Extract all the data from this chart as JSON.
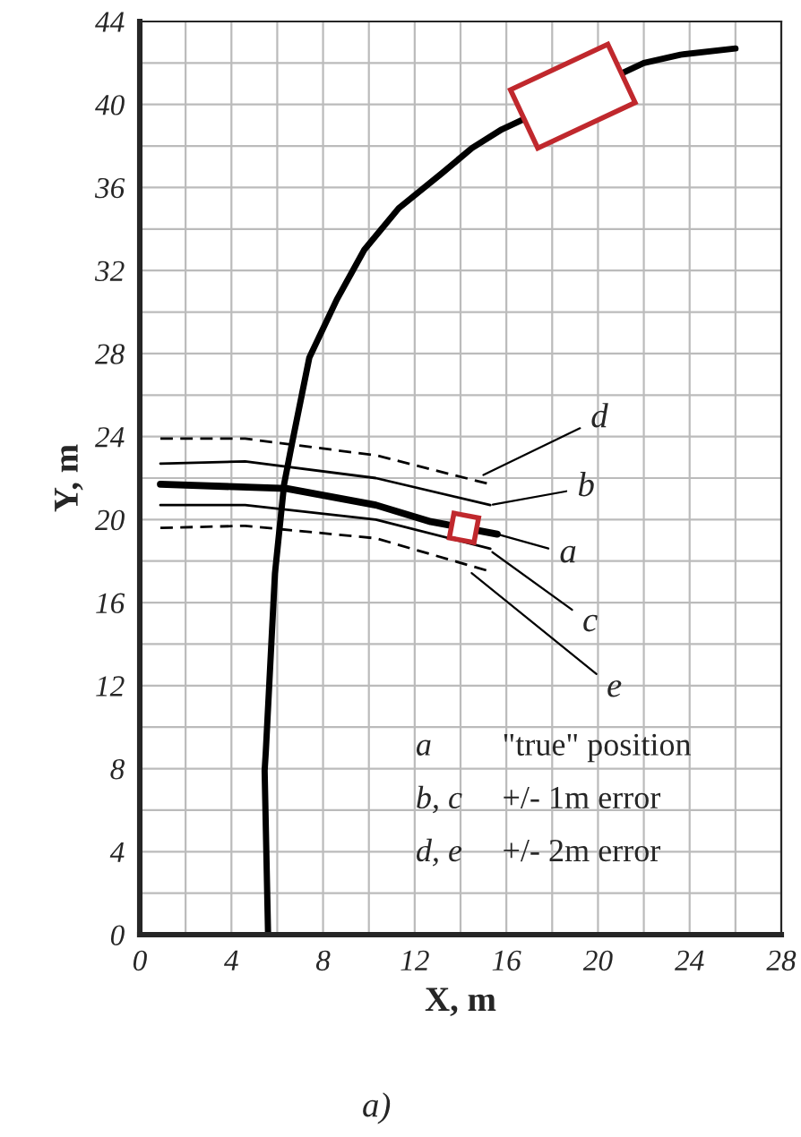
{
  "chart_data": {
    "type": "line",
    "xlabel": "X, m",
    "ylabel": "Y, m",
    "xlim": [
      0,
      28
    ],
    "xticks": [
      0,
      4,
      8,
      12,
      16,
      20,
      24,
      28
    ],
    "ylim": [
      0,
      44
    ],
    "yticks": [
      0,
      4,
      8,
      12,
      16,
      20,
      24,
      28,
      32,
      36,
      40,
      44
    ],
    "grid": true,
    "marker": "none",
    "series": [
      {
        "color": "#000000",
        "line_style": "solid",
        "x": [
          5.6,
          5.45,
          5.5,
          5.9,
          6.3,
          6.65,
          7.4,
          8.6,
          9.8,
          11.3,
          13.2,
          14.5,
          15.8,
          22,
          23.6,
          26
        ],
        "values": [
          0,
          7.9,
          8.8,
          17.4,
          21.7,
          23.7,
          27.8,
          30.6,
          33,
          35,
          36.7,
          37.9,
          38.8,
          42,
          42.4,
          42.7
        ]
      },
      {
        "color": "#000000",
        "line_style": "solid",
        "x": [
          0.9,
          6.4,
          10.3,
          12.7,
          15.6
        ],
        "values": [
          21.7,
          21.5,
          20.7,
          19.9,
          19.3
        ]
      },
      {
        "color": "#000000",
        "line_style": "solid",
        "x": [
          0.9,
          4.6,
          10.3,
          15.3
        ],
        "values": [
          22.7,
          22.8,
          22.0,
          20.7
        ]
      },
      {
        "color": "#000000",
        "line_style": "solid",
        "x": [
          0.9,
          4.6,
          10.3,
          15.3
        ],
        "values": [
          20.7,
          20.7,
          20.0,
          18.6
        ]
      },
      {
        "color": "#000000",
        "line_style": "dashed",
        "x": [
          0.9,
          4.6,
          10.3,
          15.3
        ],
        "values": [
          23.9,
          23.9,
          23.1,
          21.7
        ]
      },
      {
        "color": "#000000",
        "line_style": "dashed",
        "x": [
          0.9,
          4.6,
          10.3,
          15.3
        ],
        "values": [
          19.6,
          19.7,
          19.1,
          17.5
        ]
      }
    ],
    "annotations": [
      {
        "text": "a",
        "x": 15.6,
        "y": 19.3
      },
      {
        "text": "b",
        "x": 15.3,
        "y": 20.7
      },
      {
        "text": "c",
        "x": 15.3,
        "y": 18.5
      },
      {
        "text": "d",
        "x": 14.9,
        "y": 22.1
      },
      {
        "text": "e",
        "x": 14.4,
        "y": 17.5
      },
      "a",
      "\"true\" position",
      "b, c",
      "+/- 1m error",
      "d, e",
      "+/- 2m error",
      "a)"
    ]
  }
}
